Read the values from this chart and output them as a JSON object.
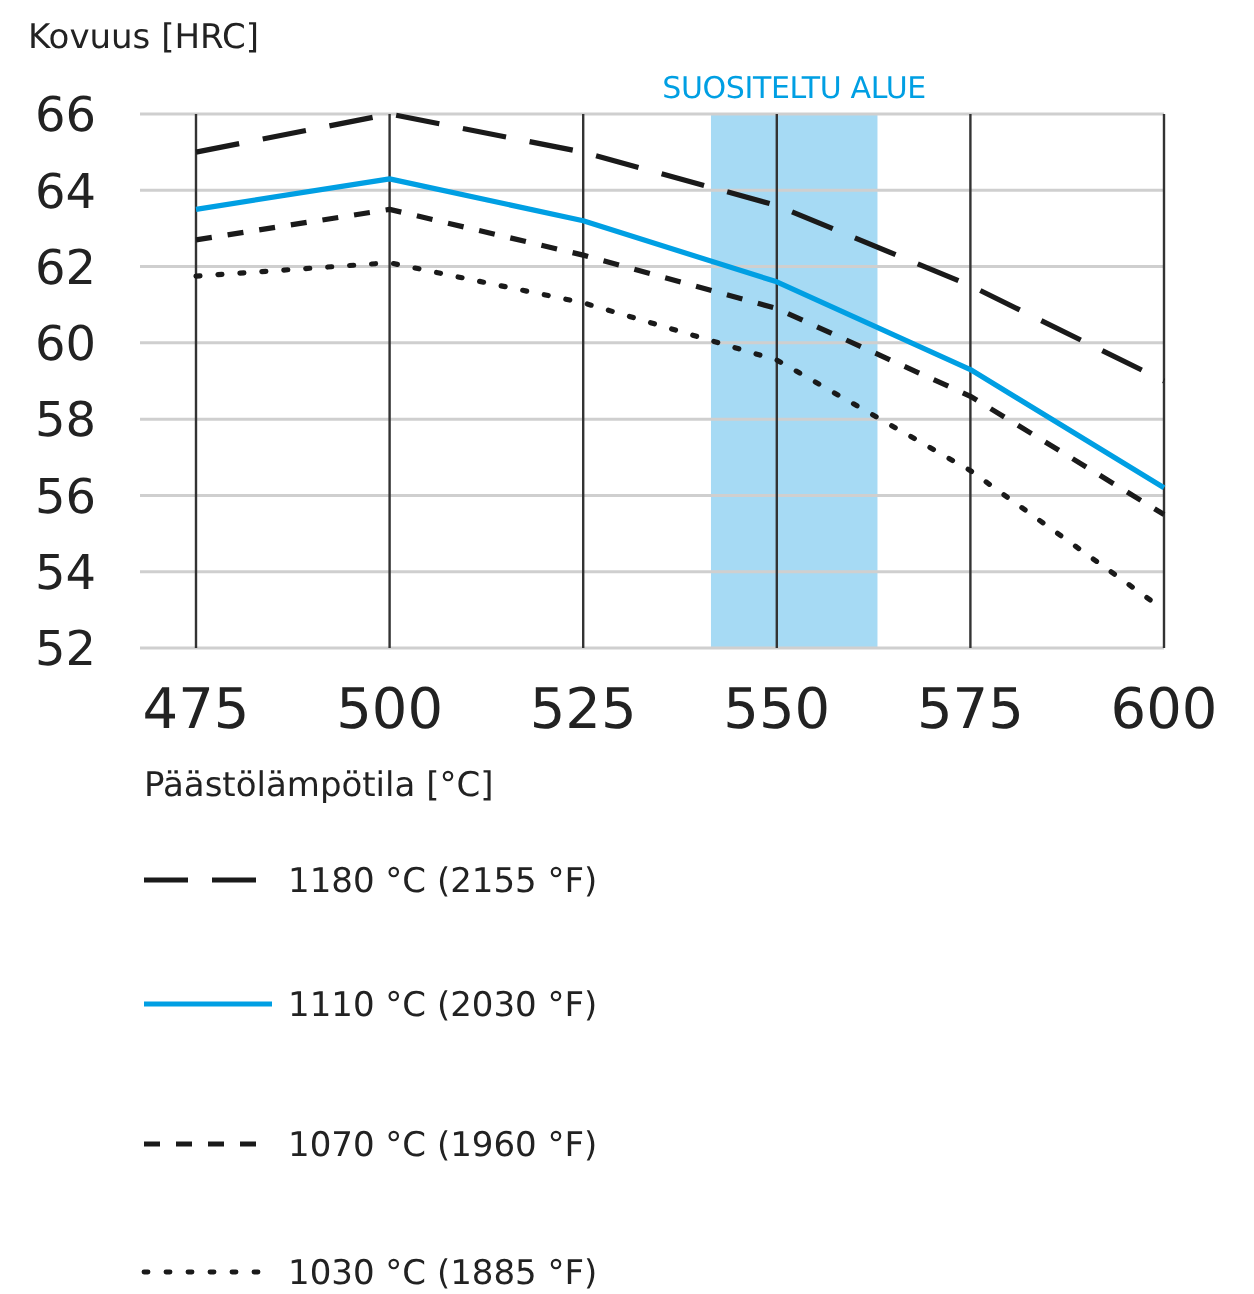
{
  "chart_data": {
    "type": "line",
    "ylabel": "Kovuus [HRC]",
    "xlabel": "Päästölämpötila [°C]",
    "x": [
      475,
      500,
      525,
      550,
      575,
      600
    ],
    "series": [
      {
        "name": "1180 °C (2155 °F)",
        "color": "#1a1a1a",
        "line_style": "longdash",
        "values": [
          65.0,
          66.0,
          65.0,
          63.6,
          61.5,
          59.0
        ]
      },
      {
        "name": "1110 °C (2030 °F)",
        "color": "#009fe3",
        "line_style": "solid",
        "values": [
          63.5,
          64.3,
          63.2,
          61.6,
          59.3,
          56.2
        ]
      },
      {
        "name": "1070 °C (1960 °F)",
        "color": "#1a1a1a",
        "line_style": "dashed",
        "values": [
          62.7,
          63.5,
          62.3,
          60.9,
          58.6,
          55.5
        ]
      },
      {
        "name": "1030 °C (1885 °F)",
        "color": "#1a1a1a",
        "line_style": "dotted",
        "values": [
          61.75,
          62.1,
          61.05,
          59.55,
          56.65,
          53.0
        ]
      }
    ],
    "xlim": [
      475,
      600
    ],
    "ylim": [
      52,
      66
    ],
    "xticks": [
      475,
      500,
      525,
      550,
      575,
      600
    ],
    "yticks": [
      52,
      54,
      56,
      58,
      60,
      62,
      64,
      66
    ],
    "bands": [
      {
        "axis": "x",
        "from": 541.5,
        "to": 563,
        "label": "SUOSITELTU ALUE",
        "color": "#a6daf4"
      }
    ],
    "grid": true,
    "legend": "bottom",
    "marker": "none"
  }
}
